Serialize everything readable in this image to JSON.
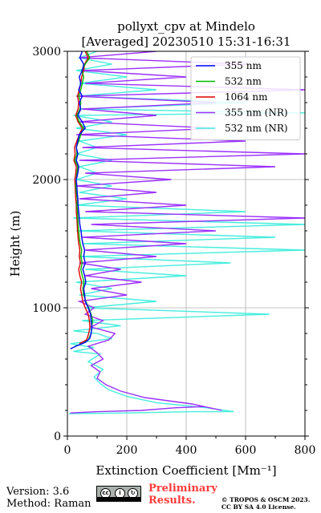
{
  "chart_data": {
    "type": "line",
    "title": "pollyxt_cpv at Mindelo",
    "subtitle": "[Averaged] 20230510 15:31-16:31",
    "xlabel": "Extinction Coefficient [Mm⁻¹]",
    "ylabel": "Height (m)",
    "xlim": [
      0,
      800
    ],
    "ylim": [
      0,
      3000
    ],
    "xticks": [
      0,
      200,
      400,
      600,
      800
    ],
    "yticks": [
      0,
      1000,
      2000,
      3000
    ],
    "grid": true,
    "legend_position": "top-right",
    "series": [
      {
        "name": "355 nm",
        "color": "#0000ff",
        "points": [
          [
            10,
            680
          ],
          [
            28,
            700
          ],
          [
            60,
            730
          ],
          [
            75,
            760
          ],
          [
            80,
            800
          ],
          [
            82,
            850
          ],
          [
            80,
            900
          ],
          [
            78,
            950
          ],
          [
            70,
            1000
          ],
          [
            60,
            1050
          ],
          [
            58,
            1100
          ],
          [
            55,
            1150
          ],
          [
            62,
            1200
          ],
          [
            58,
            1250
          ],
          [
            52,
            1300
          ],
          [
            60,
            1350
          ],
          [
            55,
            1400
          ],
          [
            58,
            1450
          ],
          [
            52,
            1500
          ],
          [
            48,
            1550
          ],
          [
            46,
            1600
          ],
          [
            42,
            1650
          ],
          [
            40,
            1700
          ],
          [
            38,
            1750
          ],
          [
            36,
            1800
          ],
          [
            35,
            1850
          ],
          [
            33,
            1900
          ],
          [
            32,
            1950
          ],
          [
            30,
            2000
          ],
          [
            35,
            2050
          ],
          [
            38,
            2100
          ],
          [
            30,
            2150
          ],
          [
            35,
            2200
          ],
          [
            30,
            2250
          ],
          [
            35,
            2300
          ],
          [
            40,
            2350
          ],
          [
            60,
            2400
          ],
          [
            50,
            2450
          ],
          [
            35,
            2500
          ],
          [
            45,
            2550
          ],
          [
            40,
            2600
          ],
          [
            50,
            2650
          ],
          [
            38,
            2700
          ],
          [
            45,
            2750
          ],
          [
            40,
            2800
          ],
          [
            50,
            2850
          ],
          [
            55,
            2900
          ],
          [
            42,
            2950
          ],
          [
            50,
            3000
          ]
        ]
      },
      {
        "name": "532 nm",
        "color": "#00bb00",
        "points": [
          [
            25,
            700
          ],
          [
            50,
            720
          ],
          [
            70,
            750
          ],
          [
            80,
            800
          ],
          [
            82,
            850
          ],
          [
            85,
            900
          ],
          [
            80,
            950
          ],
          [
            72,
            1000
          ],
          [
            62,
            1050
          ],
          [
            55,
            1100
          ],
          [
            52,
            1150
          ],
          [
            56,
            1200
          ],
          [
            50,
            1250
          ],
          [
            45,
            1300
          ],
          [
            50,
            1350
          ],
          [
            45,
            1400
          ],
          [
            48,
            1450
          ],
          [
            43,
            1500
          ],
          [
            40,
            1550
          ],
          [
            38,
            1600
          ],
          [
            36,
            1650
          ],
          [
            35,
            1700
          ],
          [
            34,
            1750
          ],
          [
            32,
            1800
          ],
          [
            33,
            1850
          ],
          [
            30,
            1900
          ],
          [
            28,
            1950
          ],
          [
            30,
            2000
          ],
          [
            32,
            2050
          ],
          [
            35,
            2100
          ],
          [
            25,
            2150
          ],
          [
            32,
            2200
          ],
          [
            30,
            2250
          ],
          [
            38,
            2300
          ],
          [
            45,
            2350
          ],
          [
            55,
            2400
          ],
          [
            40,
            2450
          ],
          [
            32,
            2500
          ],
          [
            42,
            2550
          ],
          [
            45,
            2600
          ],
          [
            38,
            2650
          ],
          [
            45,
            2700
          ],
          [
            50,
            2750
          ],
          [
            55,
            2800
          ],
          [
            48,
            2850
          ],
          [
            60,
            2900
          ],
          [
            75,
            2950
          ],
          [
            65,
            3000
          ]
        ]
      },
      {
        "name": "1064 nm",
        "color": "#dd0000",
        "points": [
          [
            40,
            720
          ],
          [
            65,
            750
          ],
          [
            72,
            800
          ],
          [
            76,
            850
          ],
          [
            74,
            900
          ],
          [
            70,
            950
          ],
          [
            60,
            1000
          ],
          [
            52,
            1050
          ],
          [
            48,
            1100
          ],
          [
            44,
            1150
          ],
          [
            48,
            1200
          ],
          [
            42,
            1250
          ],
          [
            38,
            1300
          ],
          [
            44,
            1350
          ],
          [
            40,
            1400
          ],
          [
            42,
            1450
          ],
          [
            38,
            1500
          ],
          [
            36,
            1550
          ],
          [
            34,
            1600
          ],
          [
            33,
            1650
          ],
          [
            32,
            1700
          ],
          [
            30,
            1750
          ],
          [
            30,
            1800
          ],
          [
            28,
            1850
          ],
          [
            27,
            1900
          ],
          [
            26,
            1950
          ],
          [
            25,
            2000
          ],
          [
            28,
            2050
          ],
          [
            30,
            2100
          ],
          [
            22,
            2150
          ],
          [
            26,
            2200
          ],
          [
            24,
            2250
          ],
          [
            32,
            2300
          ],
          [
            40,
            2350
          ],
          [
            50,
            2400
          ],
          [
            36,
            2450
          ],
          [
            28,
            2500
          ],
          [
            36,
            2550
          ],
          [
            38,
            2600
          ],
          [
            34,
            2650
          ],
          [
            40,
            2700
          ],
          [
            45,
            2750
          ],
          [
            48,
            2800
          ],
          [
            55,
            2850
          ],
          [
            58,
            2900
          ],
          [
            70,
            2950
          ],
          [
            60,
            3000
          ]
        ]
      },
      {
        "name": "355 nm (NR)",
        "color": "#9b30ff",
        "points": [
          [
            10,
            180
          ],
          [
            100,
            190
          ],
          [
            250,
            200
          ],
          [
            360,
            220
          ],
          [
            460,
            230
          ],
          [
            520,
            200
          ],
          [
            420,
            250
          ],
          [
            260,
            300
          ],
          [
            180,
            350
          ],
          [
            130,
            400
          ],
          [
            100,
            450
          ],
          [
            110,
            500
          ],
          [
            80,
            550
          ],
          [
            120,
            600
          ],
          [
            100,
            650
          ],
          [
            70,
            700
          ],
          [
            140,
            750
          ],
          [
            160,
            800
          ],
          [
            80,
            850
          ],
          [
            120,
            900
          ],
          [
            60,
            950
          ],
          [
            90,
            1000
          ],
          [
            40,
            1050
          ],
          [
            200,
            1100
          ],
          [
            80,
            1150
          ],
          [
            250,
            1200
          ],
          [
            60,
            1250
          ],
          [
            180,
            1300
          ],
          [
            40,
            1350
          ],
          [
            300,
            1400
          ],
          [
            60,
            1450
          ],
          [
            400,
            1500
          ],
          [
            50,
            1550
          ],
          [
            500,
            1600
          ],
          [
            80,
            1650
          ],
          [
            800,
            1700
          ],
          [
            60,
            1750
          ],
          [
            400,
            1800
          ],
          [
            40,
            1850
          ],
          [
            300,
            1900
          ],
          [
            30,
            1950
          ],
          [
            350,
            2000
          ],
          [
            60,
            2050
          ],
          [
            700,
            2100
          ],
          [
            40,
            2150
          ],
          [
            800,
            2200
          ],
          [
            50,
            2250
          ],
          [
            600,
            2300
          ],
          [
            30,
            2350
          ],
          [
            500,
            2400
          ],
          [
            40,
            2450
          ],
          [
            300,
            2500
          ],
          [
            50,
            2550
          ],
          [
            500,
            2600
          ],
          [
            30,
            2650
          ],
          [
            800,
            2700
          ],
          [
            60,
            2750
          ],
          [
            400,
            2800
          ],
          [
            50,
            2850
          ],
          [
            600,
            2900
          ],
          [
            40,
            2950
          ],
          [
            300,
            3000
          ]
        ]
      },
      {
        "name": "532 nm (NR)",
        "color": "#44eedd",
        "points": [
          [
            5,
            175
          ],
          [
            200,
            180
          ],
          [
            420,
            190
          ],
          [
            560,
            190
          ],
          [
            470,
            220
          ],
          [
            300,
            260
          ],
          [
            200,
            310
          ],
          [
            140,
            360
          ],
          [
            110,
            410
          ],
          [
            90,
            460
          ],
          [
            120,
            520
          ],
          [
            70,
            580
          ],
          [
            110,
            640
          ],
          [
            20,
            660
          ],
          [
            90,
            690
          ],
          [
            10,
            720
          ],
          [
            150,
            760
          ],
          [
            100,
            800
          ],
          [
            20,
            820
          ],
          [
            180,
            860
          ],
          [
            50,
            900
          ],
          [
            680,
            950
          ],
          [
            60,
            1000
          ],
          [
            300,
            1050
          ],
          [
            40,
            1100
          ],
          [
            150,
            1150
          ],
          [
            30,
            1200
          ],
          [
            400,
            1250
          ],
          [
            60,
            1300
          ],
          [
            550,
            1350
          ],
          [
            40,
            1400
          ],
          [
            800,
            1450
          ],
          [
            50,
            1500
          ],
          [
            700,
            1550
          ],
          [
            30,
            1600
          ],
          [
            800,
            1650
          ],
          [
            20,
            1700
          ],
          [
            600,
            1750
          ],
          [
            30,
            1800
          ],
          [
            200,
            1850
          ],
          [
            40,
            1900
          ],
          [
            150,
            1950
          ],
          [
            30,
            2000
          ],
          [
            100,
            2050
          ],
          [
            40,
            2100
          ],
          [
            150,
            2150
          ],
          [
            30,
            2200
          ],
          [
            100,
            2250
          ],
          [
            40,
            2300
          ],
          [
            200,
            2350
          ],
          [
            30,
            2400
          ],
          [
            150,
            2450
          ],
          [
            20,
            2500
          ],
          [
            800,
            2520
          ],
          [
            40,
            2550
          ],
          [
            600,
            2600
          ],
          [
            30,
            2650
          ],
          [
            300,
            2700
          ],
          [
            40,
            2750
          ],
          [
            200,
            2800
          ],
          [
            30,
            2850
          ],
          [
            150,
            2900
          ],
          [
            40,
            2950
          ],
          [
            100,
            3000
          ]
        ]
      }
    ]
  },
  "footer": {
    "version": "Version: 3.6",
    "method": "Method: Raman",
    "preliminary_line1": "Preliminary",
    "preliminary_line2": "Results.",
    "copyright_line1": "© TROPOS & OSCM 2023.",
    "copyright_line2": "CC BY SA 4.0 License."
  },
  "badge": {
    "icons": [
      "creative-commons-icon",
      "by-icon",
      "sa-icon"
    ]
  }
}
